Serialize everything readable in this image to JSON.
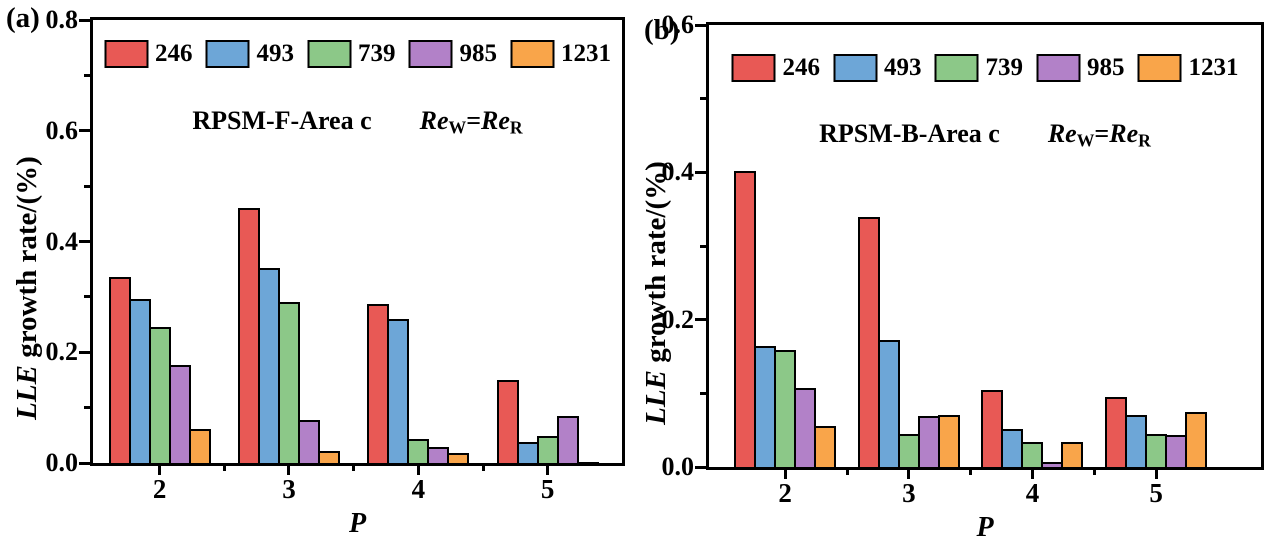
{
  "figure": {
    "panels": [
      {
        "panel_label": "(a)",
        "y_axis": {
          "italic_part": "LLE",
          "text_part": " growth rate/(%)"
        },
        "condition": {
          "base1": "Re",
          "sub1": "W",
          "operator": "=",
          "base2": "Re",
          "sub2": "R"
        }
      },
      {
        "panel_label": "(b)",
        "y_axis": {
          "italic_part": "LLE",
          "text_part": " growth rate/(%)"
        },
        "condition": {
          "base1": "Re",
          "sub1": "W",
          "operator": "=",
          "base2": "Re",
          "sub2": "R"
        }
      }
    ]
  },
  "chart_data": [
    {
      "type": "bar",
      "title": "RPSM-F-Area c",
      "annotation": "Re_W=Re_R",
      "xlabel": "P",
      "ylabel": "LLE growth rate/(%)",
      "categories": [
        "2",
        "3",
        "4",
        "5"
      ],
      "ylim": [
        0,
        0.8
      ],
      "ytick_major": 0.2,
      "ytick_minor": 0.1,
      "grid": false,
      "legend_position": "top-inside",
      "series": [
        {
          "name": "246",
          "color": "#E85955",
          "values": [
            0.34,
            0.465,
            0.29,
            0.153
          ]
        },
        {
          "name": "493",
          "color": "#6DA6D7",
          "values": [
            0.3,
            0.355,
            0.263,
            0.042
          ]
        },
        {
          "name": "739",
          "color": "#8CC888",
          "values": [
            0.25,
            0.295,
            0.047,
            0.052
          ]
        },
        {
          "name": "985",
          "color": "#B281C8",
          "values": [
            0.18,
            0.082,
            0.032,
            0.089
          ]
        },
        {
          "name": "1231",
          "color": "#F9A54A",
          "values": [
            0.065,
            0.025,
            0.022,
            0.003
          ]
        }
      ]
    },
    {
      "type": "bar",
      "title": "RPSM-B-Area c",
      "annotation": "Re_W=Re_R",
      "xlabel": "P",
      "ylabel": "LLE growth rate/(%)",
      "categories": [
        "2",
        "3",
        "4",
        "5"
      ],
      "ylim": [
        0,
        0.6
      ],
      "ytick_major": 0.2,
      "ytick_minor": 0.1,
      "grid": false,
      "legend_position": "top-inside",
      "series": [
        {
          "name": "246",
          "color": "#E85955",
          "values": [
            0.405,
            0.342,
            0.107,
            0.098
          ]
        },
        {
          "name": "493",
          "color": "#6DA6D7",
          "values": [
            0.167,
            0.175,
            0.054,
            0.073
          ]
        },
        {
          "name": "739",
          "color": "#8CC888",
          "values": [
            0.162,
            0.048,
            0.037,
            0.047
          ]
        },
        {
          "name": "985",
          "color": "#B281C8",
          "values": [
            0.11,
            0.072,
            0.01,
            0.046
          ]
        },
        {
          "name": "1231",
          "color": "#F9A54A",
          "values": [
            0.058,
            0.073,
            0.037,
            0.078
          ]
        }
      ]
    }
  ]
}
